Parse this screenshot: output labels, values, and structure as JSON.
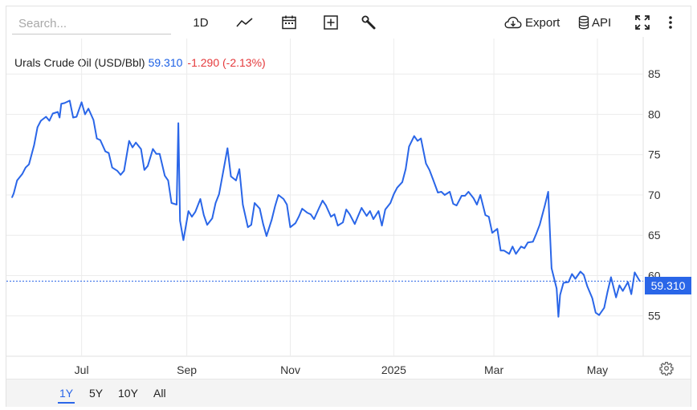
{
  "toolbar": {
    "search_placeholder": "Search...",
    "interval_label": "1D",
    "export_label": "Export",
    "api_label": "API",
    "icons": [
      "line-chart-icon",
      "calendar-icon",
      "add-icon",
      "wrench-icon",
      "cloud-download-icon",
      "database-icon",
      "fullscreen-icon",
      "more-vertical-icon"
    ]
  },
  "legend": {
    "name": "Urals Crude Oil (USD/Bbl)",
    "price": "59.310",
    "change": "-1.290 (-2.13%)"
  },
  "price_tag": "59.310",
  "ranges": [
    {
      "label": "1Y",
      "active": true
    },
    {
      "label": "5Y",
      "active": false
    },
    {
      "label": "10Y",
      "active": false
    },
    {
      "label": "All",
      "active": false
    }
  ],
  "colors": {
    "line": "#2a66e8",
    "up": "#1a5fe5",
    "down": "#e5393b",
    "grid": "#ececec"
  },
  "chart_data": {
    "type": "line",
    "title": "Urals Crude Oil (USD/Bbl)",
    "xlabel": "",
    "ylabel": "",
    "ylim": [
      50,
      89.4
    ],
    "yticks": [
      55,
      60,
      65,
      70,
      75,
      80,
      85
    ],
    "xlim": [
      "2024-05-21",
      "2025-05-28"
    ],
    "xticks": [
      {
        "date": "2024-07-01",
        "label": "Jul"
      },
      {
        "date": "2024-09-01",
        "label": "Sep"
      },
      {
        "date": "2024-11-01",
        "label": "Nov"
      },
      {
        "date": "2025-01-01",
        "label": "2025"
      },
      {
        "date": "2025-03-01",
        "label": "Mar"
      },
      {
        "date": "2025-05-01",
        "label": "May"
      }
    ],
    "grid": true,
    "last_value": 59.31,
    "series": [
      {
        "name": "Urals Crude Oil",
        "points": [
          [
            "2024-05-21",
            69.7
          ],
          [
            "2024-05-22",
            70.2
          ],
          [
            "2024-05-24",
            71.8
          ],
          [
            "2024-05-27",
            72.6
          ],
          [
            "2024-05-29",
            73.4
          ],
          [
            "2024-05-31",
            73.8
          ],
          [
            "2024-06-03",
            76.2
          ],
          [
            "2024-06-05",
            78.4
          ],
          [
            "2024-06-07",
            79.2
          ],
          [
            "2024-06-10",
            79.7
          ],
          [
            "2024-06-12",
            79.2
          ],
          [
            "2024-06-14",
            80.1
          ],
          [
            "2024-06-17",
            80.3
          ],
          [
            "2024-06-18",
            79.6
          ],
          [
            "2024-06-19",
            81.3
          ],
          [
            "2024-06-21",
            81.4
          ],
          [
            "2024-06-24",
            81.7
          ],
          [
            "2024-06-26",
            79.6
          ],
          [
            "2024-06-28",
            79.7
          ],
          [
            "2024-07-01",
            81.5
          ],
          [
            "2024-07-03",
            80.0
          ],
          [
            "2024-07-05",
            80.7
          ],
          [
            "2024-07-08",
            79.3
          ],
          [
            "2024-07-10",
            77.0
          ],
          [
            "2024-07-12",
            76.8
          ],
          [
            "2024-07-15",
            75.4
          ],
          [
            "2024-07-17",
            75.2
          ],
          [
            "2024-07-19",
            73.4
          ],
          [
            "2024-07-22",
            73.0
          ],
          [
            "2024-07-24",
            72.5
          ],
          [
            "2024-07-26",
            73.0
          ],
          [
            "2024-07-29",
            76.7
          ],
          [
            "2024-07-31",
            75.9
          ],
          [
            "2024-08-02",
            76.5
          ],
          [
            "2024-08-05",
            75.7
          ],
          [
            "2024-08-07",
            73.1
          ],
          [
            "2024-08-09",
            73.6
          ],
          [
            "2024-08-12",
            75.7
          ],
          [
            "2024-08-14",
            75.1
          ],
          [
            "2024-08-16",
            75.1
          ],
          [
            "2024-08-19",
            72.4
          ],
          [
            "2024-08-21",
            71.8
          ],
          [
            "2024-08-23",
            69.0
          ],
          [
            "2024-08-26",
            68.8
          ],
          [
            "2024-08-27",
            78.9
          ],
          [
            "2024-08-28",
            66.8
          ],
          [
            "2024-08-30",
            64.4
          ],
          [
            "2024-09-02",
            68.0
          ],
          [
            "2024-09-04",
            67.3
          ],
          [
            "2024-09-06",
            67.9
          ],
          [
            "2024-09-09",
            69.5
          ],
          [
            "2024-09-11",
            67.5
          ],
          [
            "2024-09-13",
            66.3
          ],
          [
            "2024-09-16",
            67.1
          ],
          [
            "2024-09-18",
            69.0
          ],
          [
            "2024-09-20",
            70.1
          ],
          [
            "2024-09-23",
            73.5
          ],
          [
            "2024-09-25",
            75.8
          ],
          [
            "2024-09-27",
            72.3
          ],
          [
            "2024-09-30",
            71.8
          ],
          [
            "2024-10-02",
            73.2
          ],
          [
            "2024-10-04",
            68.8
          ],
          [
            "2024-10-07",
            66.0
          ],
          [
            "2024-10-09",
            66.3
          ],
          [
            "2024-10-11",
            69.0
          ],
          [
            "2024-10-14",
            68.3
          ],
          [
            "2024-10-16",
            66.4
          ],
          [
            "2024-10-18",
            64.9
          ],
          [
            "2024-10-21",
            66.9
          ],
          [
            "2024-10-23",
            68.6
          ],
          [
            "2024-10-25",
            70.0
          ],
          [
            "2024-10-28",
            69.5
          ],
          [
            "2024-10-30",
            68.8
          ],
          [
            "2024-11-01",
            66.0
          ],
          [
            "2024-11-04",
            66.5
          ],
          [
            "2024-11-06",
            67.3
          ],
          [
            "2024-11-08",
            68.3
          ],
          [
            "2024-11-11",
            67.8
          ],
          [
            "2024-11-13",
            67.6
          ],
          [
            "2024-11-15",
            67.0
          ],
          [
            "2024-11-18",
            68.4
          ],
          [
            "2024-11-20",
            69.3
          ],
          [
            "2024-11-22",
            68.7
          ],
          [
            "2024-11-25",
            67.3
          ],
          [
            "2024-11-27",
            67.6
          ],
          [
            "2024-11-29",
            66.2
          ],
          [
            "2024-12-02",
            66.6
          ],
          [
            "2024-12-04",
            68.2
          ],
          [
            "2024-12-06",
            67.6
          ],
          [
            "2024-12-09",
            66.4
          ],
          [
            "2024-12-11",
            67.4
          ],
          [
            "2024-12-13",
            68.4
          ],
          [
            "2024-12-16",
            67.4
          ],
          [
            "2024-12-18",
            68.0
          ],
          [
            "2024-12-20",
            67.0
          ],
          [
            "2024-12-23",
            68.0
          ],
          [
            "2024-12-25",
            66.2
          ],
          [
            "2024-12-27",
            68.2
          ],
          [
            "2024-12-30",
            69.0
          ],
          [
            "2025-01-01",
            70.1
          ],
          [
            "2025-01-03",
            70.9
          ],
          [
            "2025-01-06",
            71.6
          ],
          [
            "2025-01-08",
            73.2
          ],
          [
            "2025-01-10",
            76.0
          ],
          [
            "2025-01-13",
            77.3
          ],
          [
            "2025-01-15",
            76.7
          ],
          [
            "2025-01-17",
            77.0
          ],
          [
            "2025-01-20",
            73.9
          ],
          [
            "2025-01-22",
            73.1
          ],
          [
            "2025-01-24",
            72.0
          ],
          [
            "2025-01-27",
            70.3
          ],
          [
            "2025-01-29",
            70.4
          ],
          [
            "2025-01-31",
            70.0
          ],
          [
            "2025-02-03",
            70.4
          ],
          [
            "2025-02-05",
            68.9
          ],
          [
            "2025-02-07",
            68.7
          ],
          [
            "2025-02-10",
            69.9
          ],
          [
            "2025-02-12",
            69.9
          ],
          [
            "2025-02-14",
            70.4
          ],
          [
            "2025-02-17",
            69.6
          ],
          [
            "2025-02-19",
            68.8
          ],
          [
            "2025-02-21",
            70.0
          ],
          [
            "2025-02-24",
            67.5
          ],
          [
            "2025-02-26",
            67.3
          ],
          [
            "2025-02-28",
            65.3
          ],
          [
            "2025-03-03",
            65.8
          ],
          [
            "2025-03-05",
            63.1
          ],
          [
            "2025-03-07",
            63.1
          ],
          [
            "2025-03-10",
            62.7
          ],
          [
            "2025-03-12",
            63.6
          ],
          [
            "2025-03-14",
            62.7
          ],
          [
            "2025-03-17",
            63.6
          ],
          [
            "2025-03-19",
            63.4
          ],
          [
            "2025-03-21",
            64.1
          ],
          [
            "2025-03-24",
            64.2
          ],
          [
            "2025-03-26",
            65.2
          ],
          [
            "2025-03-28",
            66.3
          ],
          [
            "2025-03-31",
            68.7
          ],
          [
            "2025-04-02",
            70.4
          ],
          [
            "2025-04-03",
            65.5
          ],
          [
            "2025-04-04",
            60.9
          ],
          [
            "2025-04-07",
            58.4
          ],
          [
            "2025-04-08",
            54.9
          ],
          [
            "2025-04-09",
            57.6
          ],
          [
            "2025-04-11",
            59.1
          ],
          [
            "2025-04-14",
            59.2
          ],
          [
            "2025-04-16",
            60.2
          ],
          [
            "2025-04-18",
            59.6
          ],
          [
            "2025-04-21",
            60.5
          ],
          [
            "2025-04-23",
            60.1
          ],
          [
            "2025-04-25",
            58.7
          ],
          [
            "2025-04-28",
            57.2
          ],
          [
            "2025-04-30",
            55.4
          ],
          [
            "2025-05-02",
            55.1
          ],
          [
            "2025-05-05",
            56.0
          ],
          [
            "2025-05-07",
            58.0
          ],
          [
            "2025-05-09",
            59.8
          ],
          [
            "2025-05-12",
            57.3
          ],
          [
            "2025-05-14",
            58.8
          ],
          [
            "2025-05-16",
            58.1
          ],
          [
            "2025-05-19",
            59.2
          ],
          [
            "2025-05-21",
            57.7
          ],
          [
            "2025-05-23",
            60.4
          ],
          [
            "2025-05-26",
            59.3
          ]
        ]
      }
    ]
  }
}
